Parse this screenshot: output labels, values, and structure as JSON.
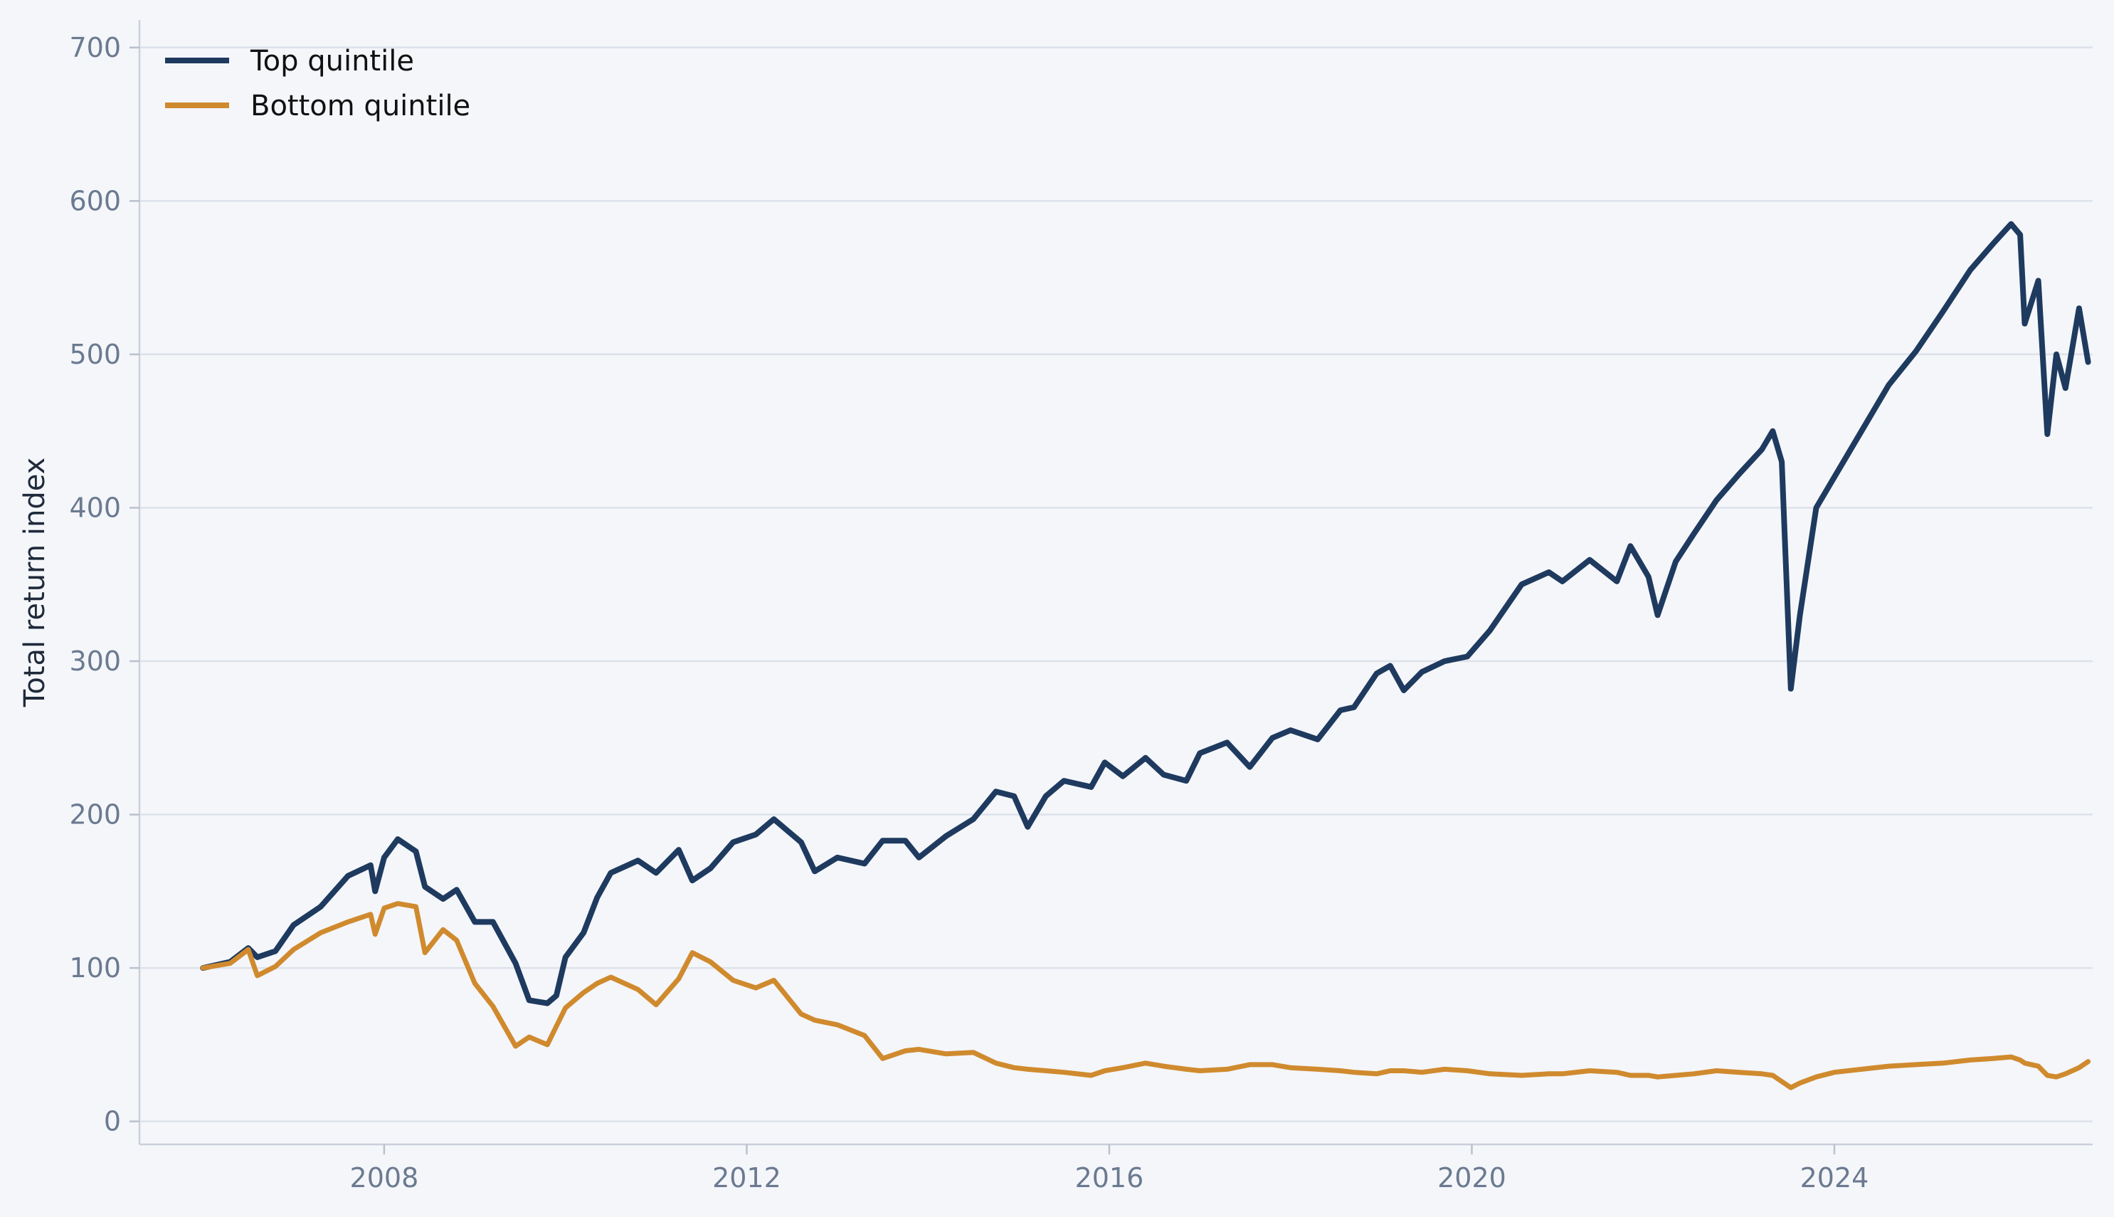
{
  "chart_data": {
    "type": "line",
    "title": "",
    "xlabel": "",
    "ylabel": "Total return index",
    "xlim": [
      2005.3,
      2026.85
    ],
    "ylim": [
      -15,
      718
    ],
    "x_ticks": [
      2008,
      2012,
      2016,
      2020,
      2024
    ],
    "x_tick_labels": [
      "2008",
      "2012",
      "2016",
      "2020",
      "2024"
    ],
    "y_ticks": [
      0,
      100,
      200,
      300,
      400,
      500,
      600,
      700
    ],
    "y_tick_labels": [
      "0",
      "100",
      "200",
      "300",
      "400",
      "500",
      "600",
      "700"
    ],
    "grid": "horizontal",
    "legend_position": "top-left",
    "series": [
      {
        "name": "Top quintile",
        "color": "#1f3a5f",
        "points": [
          [
            2006.0,
            100
          ],
          [
            2006.3,
            104
          ],
          [
            2006.5,
            113
          ],
          [
            2006.6,
            107
          ],
          [
            2006.8,
            111
          ],
          [
            2007.0,
            128
          ],
          [
            2007.3,
            140
          ],
          [
            2007.6,
            160
          ],
          [
            2007.85,
            167
          ],
          [
            2007.9,
            150
          ],
          [
            2008.0,
            172
          ],
          [
            2008.15,
            184
          ],
          [
            2008.35,
            176
          ],
          [
            2008.45,
            153
          ],
          [
            2008.65,
            145
          ],
          [
            2008.8,
            151
          ],
          [
            2009.0,
            130
          ],
          [
            2009.2,
            130
          ],
          [
            2009.45,
            103
          ],
          [
            2009.6,
            79
          ],
          [
            2009.8,
            77
          ],
          [
            2009.9,
            82
          ],
          [
            2010.0,
            107
          ],
          [
            2010.2,
            123
          ],
          [
            2010.35,
            146
          ],
          [
            2010.5,
            162
          ],
          [
            2010.8,
            170
          ],
          [
            2011.0,
            162
          ],
          [
            2011.25,
            177
          ],
          [
            2011.4,
            157
          ],
          [
            2011.6,
            165
          ],
          [
            2011.85,
            182
          ],
          [
            2012.1,
            187
          ],
          [
            2012.3,
            197
          ],
          [
            2012.6,
            182
          ],
          [
            2012.75,
            163
          ],
          [
            2013.0,
            172
          ],
          [
            2013.3,
            168
          ],
          [
            2013.5,
            183
          ],
          [
            2013.75,
            183
          ],
          [
            2013.9,
            172
          ],
          [
            2014.2,
            186
          ],
          [
            2014.5,
            197
          ],
          [
            2014.75,
            215
          ],
          [
            2014.95,
            212
          ],
          [
            2015.1,
            192
          ],
          [
            2015.3,
            212
          ],
          [
            2015.5,
            222
          ],
          [
            2015.8,
            218
          ],
          [
            2015.95,
            234
          ],
          [
            2016.15,
            225
          ],
          [
            2016.4,
            237
          ],
          [
            2016.6,
            226
          ],
          [
            2016.85,
            222
          ],
          [
            2017.0,
            240
          ],
          [
            2017.3,
            247
          ],
          [
            2017.55,
            231
          ],
          [
            2017.8,
            250
          ],
          [
            2018.0,
            255
          ],
          [
            2018.3,
            249
          ],
          [
            2018.55,
            268
          ],
          [
            2018.7,
            270
          ],
          [
            2018.95,
            292
          ],
          [
            2019.1,
            297
          ],
          [
            2019.25,
            281
          ],
          [
            2019.45,
            293
          ],
          [
            2019.7,
            300
          ],
          [
            2019.95,
            303
          ],
          [
            2020.2,
            320
          ],
          [
            2020.55,
            350
          ],
          [
            2020.85,
            358
          ],
          [
            2021.0,
            352
          ],
          [
            2021.3,
            366
          ],
          [
            2021.6,
            352
          ],
          [
            2021.75,
            375
          ],
          [
            2021.95,
            355
          ],
          [
            2022.05,
            330
          ],
          [
            2022.25,
            365
          ],
          [
            2022.45,
            383
          ],
          [
            2022.7,
            405
          ],
          [
            2022.95,
            422
          ],
          [
            2023.2,
            438
          ],
          [
            2023.32,
            450
          ],
          [
            2023.42,
            430
          ],
          [
            2023.52,
            282
          ],
          [
            2023.62,
            330
          ],
          [
            2023.8,
            400
          ],
          [
            2024.0,
            420
          ],
          [
            2024.3,
            450
          ],
          [
            2024.6,
            480
          ],
          [
            2024.9,
            502
          ],
          [
            2025.2,
            528
          ],
          [
            2025.5,
            555
          ],
          [
            2025.75,
            572
          ],
          [
            2025.95,
            585
          ],
          [
            2026.05,
            578
          ],
          [
            2026.1,
            520
          ],
          [
            2026.25,
            548
          ],
          [
            2026.35,
            448
          ],
          [
            2026.45,
            500
          ],
          [
            2026.55,
            478
          ],
          [
            2026.7,
            530
          ],
          [
            2026.8,
            495
          ]
        ]
      },
      {
        "name": "Bottom quintile",
        "color": "#d08a2e",
        "points": [
          [
            2006.0,
            100
          ],
          [
            2006.3,
            103
          ],
          [
            2006.5,
            112
          ],
          [
            2006.6,
            95
          ],
          [
            2006.8,
            101
          ],
          [
            2007.0,
            112
          ],
          [
            2007.3,
            123
          ],
          [
            2007.6,
            130
          ],
          [
            2007.85,
            135
          ],
          [
            2007.9,
            122
          ],
          [
            2008.0,
            139
          ],
          [
            2008.15,
            142
          ],
          [
            2008.35,
            140
          ],
          [
            2008.45,
            110
          ],
          [
            2008.65,
            125
          ],
          [
            2008.8,
            118
          ],
          [
            2009.0,
            90
          ],
          [
            2009.2,
            75
          ],
          [
            2009.45,
            49
          ],
          [
            2009.6,
            55
          ],
          [
            2009.8,
            50
          ],
          [
            2009.9,
            62
          ],
          [
            2010.0,
            74
          ],
          [
            2010.2,
            84
          ],
          [
            2010.35,
            90
          ],
          [
            2010.5,
            94
          ],
          [
            2010.8,
            86
          ],
          [
            2011.0,
            76
          ],
          [
            2011.25,
            93
          ],
          [
            2011.4,
            110
          ],
          [
            2011.6,
            104
          ],
          [
            2011.85,
            92
          ],
          [
            2012.1,
            87
          ],
          [
            2012.3,
            92
          ],
          [
            2012.6,
            70
          ],
          [
            2012.75,
            66
          ],
          [
            2013.0,
            63
          ],
          [
            2013.3,
            56
          ],
          [
            2013.5,
            41
          ],
          [
            2013.75,
            46
          ],
          [
            2013.9,
            47
          ],
          [
            2014.2,
            44
          ],
          [
            2014.5,
            45
          ],
          [
            2014.75,
            38
          ],
          [
            2014.95,
            35
          ],
          [
            2015.1,
            34
          ],
          [
            2015.3,
            33
          ],
          [
            2015.5,
            32
          ],
          [
            2015.8,
            30
          ],
          [
            2015.95,
            33
          ],
          [
            2016.15,
            35
          ],
          [
            2016.4,
            38
          ],
          [
            2016.6,
            36
          ],
          [
            2016.85,
            34
          ],
          [
            2017.0,
            33
          ],
          [
            2017.3,
            34
          ],
          [
            2017.55,
            37
          ],
          [
            2017.8,
            37
          ],
          [
            2018.0,
            35
          ],
          [
            2018.3,
            34
          ],
          [
            2018.55,
            33
          ],
          [
            2018.7,
            32
          ],
          [
            2018.95,
            31
          ],
          [
            2019.1,
            33
          ],
          [
            2019.25,
            33
          ],
          [
            2019.45,
            32
          ],
          [
            2019.7,
            34
          ],
          [
            2019.95,
            33
          ],
          [
            2020.2,
            31
          ],
          [
            2020.55,
            30
          ],
          [
            2020.85,
            31
          ],
          [
            2021.0,
            31
          ],
          [
            2021.3,
            33
          ],
          [
            2021.6,
            32
          ],
          [
            2021.75,
            30
          ],
          [
            2021.95,
            30
          ],
          [
            2022.05,
            29
          ],
          [
            2022.25,
            30
          ],
          [
            2022.45,
            31
          ],
          [
            2022.7,
            33
          ],
          [
            2022.95,
            32
          ],
          [
            2023.2,
            31
          ],
          [
            2023.32,
            30
          ],
          [
            2023.42,
            26
          ],
          [
            2023.52,
            22
          ],
          [
            2023.62,
            25
          ],
          [
            2023.8,
            29
          ],
          [
            2024.0,
            32
          ],
          [
            2024.3,
            34
          ],
          [
            2024.6,
            36
          ],
          [
            2024.9,
            37
          ],
          [
            2025.2,
            38
          ],
          [
            2025.5,
            40
          ],
          [
            2025.75,
            41
          ],
          [
            2025.95,
            42
          ],
          [
            2026.05,
            40
          ],
          [
            2026.1,
            38
          ],
          [
            2026.25,
            36
          ],
          [
            2026.35,
            30
          ],
          [
            2026.45,
            29
          ],
          [
            2026.55,
            31
          ],
          [
            2026.7,
            35
          ],
          [
            2026.8,
            39
          ]
        ]
      }
    ]
  }
}
